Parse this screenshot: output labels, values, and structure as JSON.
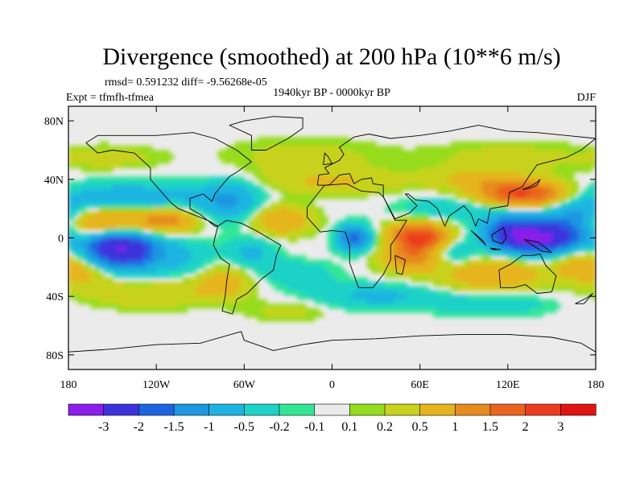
{
  "chart_data": {
    "type": "heatmap",
    "title": "Divergence (smoothed) at 200 hPa (10**6 m/s)",
    "stats_line": "rmsd= 0.591232 diff= -9.56268e-05",
    "left_label": "Expt = tfmfh-tfmea",
    "center_label": "1940kyr BP - 0000kyr BP",
    "right_label": "DJF",
    "x_ticks": [
      {
        "label": "180",
        "lon": -180
      },
      {
        "label": "120W",
        "lon": -120
      },
      {
        "label": "60W",
        "lon": -60
      },
      {
        "label": "0",
        "lon": 0
      },
      {
        "label": "60E",
        "lon": 60
      },
      {
        "label": "120E",
        "lon": 120
      },
      {
        "label": "180",
        "lon": 180
      }
    ],
    "y_ticks": [
      {
        "label": "80N",
        "lat": 80
      },
      {
        "label": "40N",
        "lat": 40
      },
      {
        "label": "0",
        "lat": 0
      },
      {
        "label": "40S",
        "lat": -40
      },
      {
        "label": "80S",
        "lat": -80
      }
    ],
    "xlim": [
      -180,
      180
    ],
    "ylim": [
      -90,
      90
    ],
    "colorbar": {
      "levels": [
        "-3",
        "-2",
        "-1.5",
        "-1",
        "-0.5",
        "-0.2",
        "-0.1",
        "0.1",
        "0.2",
        "0.5",
        "1",
        "1.5",
        "2",
        "3"
      ],
      "colors": [
        "#8c1eeb",
        "#3c32dc",
        "#1e64e1",
        "#1e96e1",
        "#1eb4e1",
        "#1ed2c8",
        "#32e696",
        "#ebebeb",
        "#96dc1e",
        "#c8d21e",
        "#e6b41e",
        "#e68c1e",
        "#eb641e",
        "#eb3c1e",
        "#e11414"
      ]
    },
    "features": [
      {
        "lon": -145,
        "lat": -8,
        "sx": 18,
        "sy": 10,
        "v": -3.2
      },
      {
        "lon": -155,
        "lat": 10,
        "sx": 25,
        "sy": 7,
        "v": 1.6
      },
      {
        "lon": -110,
        "lat": 12,
        "sx": 15,
        "sy": 6,
        "v": 1.0
      },
      {
        "lon": -140,
        "lat": 28,
        "sx": 40,
        "sy": 7,
        "v": -0.8
      },
      {
        "lon": -165,
        "lat": -22,
        "sx": 15,
        "sy": 8,
        "v": 0.8
      },
      {
        "lon": -125,
        "lat": -38,
        "sx": 30,
        "sy": 7,
        "v": 0.5
      },
      {
        "lon": -100,
        "lat": -15,
        "sx": 15,
        "sy": 10,
        "v": -0.5
      },
      {
        "lon": -70,
        "lat": 25,
        "sx": 15,
        "sy": 10,
        "v": -1.0
      },
      {
        "lon": -35,
        "lat": 12,
        "sx": 15,
        "sy": 7,
        "v": 1.0
      },
      {
        "lon": -55,
        "lat": -10,
        "sx": 12,
        "sy": 8,
        "v": -0.6
      },
      {
        "lon": -75,
        "lat": -30,
        "sx": 15,
        "sy": 8,
        "v": 0.8
      },
      {
        "lon": -25,
        "lat": -25,
        "sx": 20,
        "sy": 7,
        "v": -0.4
      },
      {
        "lon": 15,
        "lat": 0,
        "sx": 8,
        "sy": 6,
        "v": -1.8
      },
      {
        "lon": 0,
        "lat": 38,
        "sx": 35,
        "sy": 6,
        "v": 0.5
      },
      {
        "lon": -20,
        "lat": 55,
        "sx": 40,
        "sy": 10,
        "v": 0.3
      },
      {
        "lon": 60,
        "lat": 0,
        "sx": 14,
        "sy": 7,
        "v": 2.5
      },
      {
        "lon": 55,
        "lat": -15,
        "sx": 15,
        "sy": 6,
        "v": 1.2
      },
      {
        "lon": 80,
        "lat": -10,
        "sx": 12,
        "sy": 7,
        "v": -0.8
      },
      {
        "lon": 110,
        "lat": -25,
        "sx": 25,
        "sy": 8,
        "v": 1.0
      },
      {
        "lon": 80,
        "lat": 20,
        "sx": 25,
        "sy": 6,
        "v": -0.5
      },
      {
        "lon": 130,
        "lat": 30,
        "sx": 22,
        "sy": 6,
        "v": 2.2
      },
      {
        "lon": 100,
        "lat": 40,
        "sx": 25,
        "sy": 5,
        "v": 0.6
      },
      {
        "lon": 145,
        "lat": 0,
        "sx": 20,
        "sy": 8,
        "v": -3.2
      },
      {
        "lon": 120,
        "lat": 5,
        "sx": 12,
        "sy": 8,
        "v": -1.5
      },
      {
        "lon": 170,
        "lat": 15,
        "sx": 15,
        "sy": 8,
        "v": -1.2
      },
      {
        "lon": 170,
        "lat": -15,
        "sx": 15,
        "sy": 10,
        "v": 0.8
      },
      {
        "lon": 120,
        "lat": 55,
        "sx": 40,
        "sy": 8,
        "v": 0.3
      },
      {
        "lon": 30,
        "lat": -40,
        "sx": 30,
        "sy": 6,
        "v": -0.6
      },
      {
        "lon": 110,
        "lat": -45,
        "sx": 30,
        "sy": 6,
        "v": -0.4
      },
      {
        "lon": -150,
        "lat": 55,
        "sx": 25,
        "sy": 6,
        "v": 0.3
      },
      {
        "lon": -30,
        "lat": -50,
        "sx": 20,
        "sy": 5,
        "v": 0.3
      }
    ],
    "land_outlines": [
      [
        [
          -168,
          65
        ],
        [
          -160,
          70
        ],
        [
          -140,
          70
        ],
        [
          -120,
          70
        ],
        [
          -95,
          72
        ],
        [
          -80,
          68
        ],
        [
          -65,
          60
        ],
        [
          -55,
          52
        ],
        [
          -65,
          45
        ],
        [
          -70,
          42
        ],
        [
          -76,
          35
        ],
        [
          -80,
          30
        ],
        [
          -82,
          25
        ],
        [
          -88,
          30
        ],
        [
          -97,
          27
        ],
        [
          -97,
          20
        ],
        [
          -90,
          16
        ],
        [
          -85,
          12
        ],
        [
          -80,
          8
        ],
        [
          -78,
          8
        ],
        [
          -85,
          12
        ],
        [
          -95,
          16
        ],
        [
          -105,
          20
        ],
        [
          -110,
          24
        ],
        [
          -117,
          32
        ],
        [
          -124,
          40
        ],
        [
          -124,
          48
        ],
        [
          -135,
          58
        ],
        [
          -150,
          60
        ],
        [
          -160,
          58
        ],
        [
          -168,
          65
        ]
      ],
      [
        [
          -78,
          8
        ],
        [
          -72,
          12
        ],
        [
          -62,
          10
        ],
        [
          -52,
          5
        ],
        [
          -35,
          -5
        ],
        [
          -38,
          -12
        ],
        [
          -40,
          -22
        ],
        [
          -48,
          -28
        ],
        [
          -58,
          -38
        ],
        [
          -65,
          -42
        ],
        [
          -68,
          -52
        ],
        [
          -75,
          -50
        ],
        [
          -73,
          -40
        ],
        [
          -72,
          -30
        ],
        [
          -70,
          -18
        ],
        [
          -76,
          -14
        ],
        [
          -81,
          -5
        ],
        [
          -80,
          0
        ],
        [
          -78,
          8
        ]
      ],
      [
        [
          -17,
          21
        ],
        [
          -10,
          30
        ],
        [
          -5,
          36
        ],
        [
          10,
          37
        ],
        [
          20,
          32
        ],
        [
          32,
          31
        ],
        [
          35,
          28
        ],
        [
          43,
          12
        ],
        [
          51,
          12
        ],
        [
          45,
          2
        ],
        [
          40,
          -5
        ],
        [
          40,
          -15
        ],
        [
          35,
          -25
        ],
        [
          28,
          -34
        ],
        [
          18,
          -34
        ],
        [
          12,
          -17
        ],
        [
          12,
          -5
        ],
        [
          9,
          4
        ],
        [
          0,
          5
        ],
        [
          -8,
          4
        ],
        [
          -17,
          14
        ],
        [
          -17,
          21
        ]
      ],
      [
        [
          -10,
          36
        ],
        [
          -9,
          43
        ],
        [
          -2,
          44
        ],
        [
          -5,
          48
        ],
        [
          5,
          53
        ],
        [
          8,
          57
        ],
        [
          5,
          62
        ],
        [
          15,
          69
        ],
        [
          25,
          71
        ],
        [
          40,
          68
        ],
        [
          60,
          70
        ],
        [
          80,
          73
        ],
        [
          100,
          77
        ],
        [
          120,
          73
        ],
        [
          140,
          72
        ],
        [
          160,
          70
        ],
        [
          180,
          68
        ],
        [
          170,
          60
        ],
        [
          160,
          55
        ],
        [
          140,
          50
        ],
        [
          135,
          43
        ],
        [
          130,
          35
        ],
        [
          121,
          31
        ],
        [
          120,
          22
        ],
        [
          108,
          20
        ],
        [
          106,
          10
        ],
        [
          100,
          13
        ],
        [
          98,
          8
        ],
        [
          95,
          16
        ],
        [
          90,
          22
        ],
        [
          80,
          15
        ],
        [
          77,
          8
        ],
        [
          72,
          20
        ],
        [
          66,
          25
        ],
        [
          57,
          26
        ],
        [
          52,
          30
        ],
        [
          50,
          30
        ],
        [
          58,
          22
        ],
        [
          53,
          17
        ],
        [
          43,
          13
        ],
        [
          35,
          28
        ],
        [
          35,
          36
        ],
        [
          28,
          37
        ],
        [
          27,
          41
        ],
        [
          20,
          40
        ],
        [
          15,
          37
        ],
        [
          12,
          44
        ],
        [
          5,
          43
        ],
        [
          -2,
          36
        ],
        [
          -10,
          36
        ]
      ],
      [
        [
          114,
          -22
        ],
        [
          122,
          -18
        ],
        [
          130,
          -12
        ],
        [
          137,
          -12
        ],
        [
          142,
          -11
        ],
        [
          146,
          -19
        ],
        [
          153,
          -26
        ],
        [
          150,
          -37
        ],
        [
          140,
          -38
        ],
        [
          132,
          -32
        ],
        [
          124,
          -34
        ],
        [
          115,
          -34
        ],
        [
          114,
          -22
        ]
      ],
      [
        [
          -55,
          60
        ],
        [
          -45,
          60
        ],
        [
          -30,
          68
        ],
        [
          -20,
          75
        ],
        [
          -20,
          82
        ],
        [
          -40,
          83
        ],
        [
          -60,
          80
        ],
        [
          -70,
          77
        ],
        [
          -55,
          70
        ],
        [
          -55,
          60
        ]
      ],
      [
        [
          95,
          5
        ],
        [
          105,
          -5
        ],
        [
          103,
          -2
        ],
        [
          95,
          5
        ]
      ],
      [
        [
          108,
          -7
        ],
        [
          115,
          -8
        ],
        [
          110,
          -8
        ],
        [
          108,
          -7
        ]
      ],
      [
        [
          109,
          2
        ],
        [
          117,
          7
        ],
        [
          119,
          0
        ],
        [
          116,
          -4
        ],
        [
          110,
          -2
        ],
        [
          109,
          2
        ]
      ],
      [
        [
          131,
          -1
        ],
        [
          141,
          -3
        ],
        [
          150,
          -10
        ],
        [
          143,
          -9
        ],
        [
          137,
          -5
        ],
        [
          131,
          -1
        ]
      ],
      [
        [
          130,
          33
        ],
        [
          135,
          34
        ],
        [
          140,
          36
        ],
        [
          142,
          40
        ],
        [
          140,
          38
        ],
        [
          135,
          35
        ],
        [
          130,
          33
        ]
      ],
      [
        [
          43,
          -12
        ],
        [
          50,
          -15
        ],
        [
          48,
          -25
        ],
        [
          44,
          -24
        ],
        [
          43,
          -12
        ]
      ],
      [
        [
          166,
          -45
        ],
        [
          174,
          -41
        ],
        [
          178,
          -38
        ],
        [
          172,
          -45
        ],
        [
          166,
          -45
        ]
      ],
      [
        [
          -6,
          50
        ],
        [
          0,
          51
        ],
        [
          -3,
          56
        ],
        [
          -5,
          58
        ],
        [
          -6,
          50
        ]
      ],
      [
        [
          -180,
          -78
        ],
        [
          -150,
          -76
        ],
        [
          -120,
          -73
        ],
        [
          -90,
          -72
        ],
        [
          -62,
          -64
        ],
        [
          -60,
          -70
        ],
        [
          -40,
          -77
        ],
        [
          -20,
          -73
        ],
        [
          0,
          -70
        ],
        [
          30,
          -69
        ],
        [
          60,
          -67
        ],
        [
          90,
          -66
        ],
        [
          120,
          -66
        ],
        [
          150,
          -68
        ],
        [
          170,
          -72
        ],
        [
          180,
          -78
        ]
      ]
    ]
  }
}
